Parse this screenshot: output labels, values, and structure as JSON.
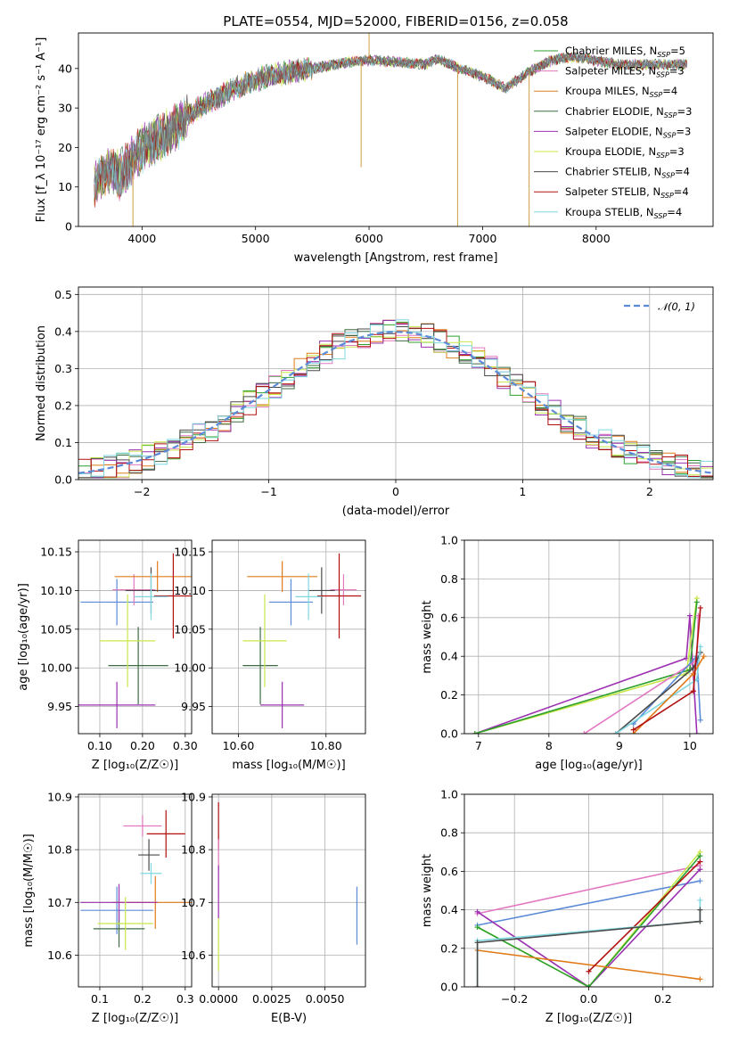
{
  "title": "PLATE=0554, MJD=52000, FIBERID=0156, z=0.058",
  "models": [
    {
      "name": "Chabrier MILES",
      "nssp": "5",
      "color": "#2ca02c"
    },
    {
      "name": "Salpeter MILES",
      "nssp": "3",
      "color": "#e377c2"
    },
    {
      "name": "Kroupa MILES",
      "nssp": "4",
      "color": "#e07b1a"
    },
    {
      "name": "Chabrier ELODIE",
      "nssp": "3",
      "color": "#3d6b45"
    },
    {
      "name": "Salpeter ELODIE",
      "nssp": "3",
      "color": "#9b30b0"
    },
    {
      "name": "Kroupa ELODIE",
      "nssp": "3",
      "color": "#c8e84a"
    },
    {
      "name": "Chabrier STELIB",
      "nssp": "4",
      "color": "#4a4a4a"
    },
    {
      "name": "Salpeter STELIB",
      "nssp": "4",
      "color": "#b21010"
    },
    {
      "name": "Kroupa STELIB",
      "nssp": "4",
      "color": "#7fd7e0"
    }
  ],
  "chart_data": [
    {
      "id": "spectrum",
      "type": "line",
      "xlabel": "wavelength [Angstrom, rest frame]",
      "ylabel": "Flux [f_λ 10⁻¹⁷ erg cm⁻² s⁻¹ A⁻¹]",
      "xlim": [
        3440,
        9030
      ],
      "ylim": [
        0,
        49
      ],
      "xticks": [
        4000,
        5000,
        6000,
        7000,
        8000
      ],
      "yticks": [
        0,
        10,
        20,
        30,
        40
      ],
      "continuum": {
        "x": [
          3580,
          3700,
          3800,
          3900,
          4000,
          4100,
          4200,
          4300,
          4400,
          4500,
          4700,
          4900,
          5100,
          5300,
          5500,
          5700,
          5900,
          6100,
          6300,
          6500,
          6600,
          6800,
          7000,
          7200,
          7400,
          7600,
          7800,
          8000,
          8200,
          8400,
          8600,
          8800
        ],
        "y": [
          11,
          14,
          13,
          16,
          20,
          21.5,
          23,
          25,
          28,
          30,
          33,
          36,
          38,
          39,
          40,
          41,
          42,
          42,
          41.5,
          41,
          42.5,
          40,
          38,
          35,
          39,
          42,
          43,
          42,
          41,
          41,
          41,
          41
        ]
      },
      "spikes": [
        {
          "x": 3920,
          "ymin": 0
        },
        {
          "x": 5930,
          "ymin": 15
        },
        {
          "x": 6000,
          "ymin": 49
        },
        {
          "x": 6780,
          "ymin": 0
        },
        {
          "x": 7410,
          "ymin": 0
        }
      ]
    },
    {
      "id": "residuals",
      "type": "histogram",
      "xlabel": "(data-model)/error",
      "ylabel": "Normed distribution",
      "xlim": [
        -2.5,
        2.5
      ],
      "ylim": [
        0,
        0.52
      ],
      "xticks": [
        -2,
        -1,
        0,
        1,
        2
      ],
      "yticks": [
        0.0,
        0.1,
        0.2,
        0.3,
        0.4,
        0.5
      ],
      "legend": "𝒩(0, 1)",
      "legend_color": "#5b8bd8",
      "bins": {
        "start": -2.5,
        "width": 0.1,
        "count": 50
      }
    },
    {
      "id": "age_vs_Z",
      "type": "scatter",
      "xlabel": "Z [log₁₀(Z/Z☉)]",
      "ylabel": "age  [log₁₀(age/yr)]",
      "xlim": [
        0.05,
        0.315
      ],
      "ylim": [
        9.915,
        10.165
      ],
      "xticks": [
        0.1,
        0.2,
        0.3
      ],
      "yticks": [
        9.95,
        10.0,
        10.05,
        10.1,
        10.15
      ],
      "points": [
        {
          "x": 0.14,
          "y": 10.085,
          "xerr": 0.085,
          "yerr": 0.03,
          "c": "#5b8bd8"
        },
        {
          "x": 0.18,
          "y": 10.101,
          "xerr": 0.05,
          "yerr": 0.02,
          "c": "#e377c2"
        },
        {
          "x": 0.235,
          "y": 10.118,
          "xerr": 0.1,
          "yerr": 0.02,
          "c": "#e07b1a"
        },
        {
          "x": 0.19,
          "y": 10.003,
          "xerr": 0.07,
          "yerr": 0.05,
          "c": "#3d6b45"
        },
        {
          "x": 0.14,
          "y": 9.952,
          "xerr": 0.09,
          "yerr": 0.03,
          "c": "#9b30b0"
        },
        {
          "x": 0.165,
          "y": 10.035,
          "xerr": 0.065,
          "yerr": 0.06,
          "c": "#c8e84a"
        },
        {
          "x": 0.22,
          "y": 10.1,
          "xerr": 0.06,
          "yerr": 0.03,
          "c": "#4a4a4a"
        },
        {
          "x": 0.272,
          "y": 10.093,
          "xerr": 0.045,
          "yerr": 0.055,
          "c": "#b21010"
        },
        {
          "x": 0.22,
          "y": 10.092,
          "xerr": 0.04,
          "yerr": 0.03,
          "c": "#7fd7e0"
        }
      ]
    },
    {
      "id": "age_vs_mass",
      "type": "scatter",
      "xlabel": "mass [log₁₀(M/M☉)]",
      "ylabel": "",
      "xlim": [
        10.54,
        10.89
      ],
      "ylim": [
        9.915,
        10.165
      ],
      "xticks": [
        10.6,
        10.8
      ],
      "yticks": [
        9.95,
        10.0,
        10.05,
        10.1,
        10.15
      ],
      "points": [
        {
          "x": 10.72,
          "y": 10.085,
          "xerr": 0.05,
          "yerr": 0.03,
          "c": "#5b8bd8"
        },
        {
          "x": 10.84,
          "y": 10.101,
          "xerr": 0.03,
          "yerr": 0.02,
          "c": "#e377c2"
        },
        {
          "x": 10.7,
          "y": 10.118,
          "xerr": 0.08,
          "yerr": 0.02,
          "c": "#e07b1a"
        },
        {
          "x": 10.65,
          "y": 10.003,
          "xerr": 0.04,
          "yerr": 0.05,
          "c": "#3d6b45"
        },
        {
          "x": 10.7,
          "y": 9.952,
          "xerr": 0.05,
          "yerr": 0.03,
          "c": "#9b30b0"
        },
        {
          "x": 10.66,
          "y": 10.035,
          "xerr": 0.05,
          "yerr": 0.06,
          "c": "#c8e84a"
        },
        {
          "x": 10.79,
          "y": 10.1,
          "xerr": 0.03,
          "yerr": 0.03,
          "c": "#4a4a4a"
        },
        {
          "x": 10.83,
          "y": 10.093,
          "xerr": 0.05,
          "yerr": 0.055,
          "c": "#b21010"
        },
        {
          "x": 10.76,
          "y": 10.092,
          "xerr": 0.03,
          "yerr": 0.03,
          "c": "#7fd7e0"
        }
      ]
    },
    {
      "id": "weight_vs_age",
      "type": "line",
      "xlabel": "age  [log₁₀(age/yr)]",
      "ylabel": "mass weight",
      "xlim": [
        6.8,
        10.33
      ],
      "ylim": [
        0,
        1.0
      ],
      "xticks": [
        7,
        8,
        9,
        10
      ],
      "yticks": [
        0.0,
        0.2,
        0.4,
        0.6,
        0.8,
        1.0
      ],
      "series": [
        {
          "c": "#9b30b0",
          "x": [
            6.95,
            9.95,
            10.0,
            10.1
          ],
          "y": [
            0.0,
            0.39,
            0.61,
            0.0
          ]
        },
        {
          "c": "#c8e84a",
          "x": [
            6.95,
            9.95,
            10.1
          ],
          "y": [
            0.0,
            0.31,
            0.7
          ]
        },
        {
          "c": "#2ca02c",
          "x": [
            6.95,
            10.0,
            10.1
          ],
          "y": [
            0.0,
            0.33,
            0.68
          ]
        },
        {
          "c": "#e377c2",
          "x": [
            8.5,
            10.1,
            10.12
          ],
          "y": [
            0.0,
            0.38,
            0.61
          ]
        },
        {
          "c": "#5b8bd8",
          "x": [
            9.2,
            10.1,
            10.15
          ],
          "y": [
            0.05,
            0.4,
            0.07
          ]
        },
        {
          "c": "#4a4a4a",
          "x": [
            8.95,
            10.05,
            10.15
          ],
          "y": [
            0.0,
            0.34,
            0.42
          ]
        },
        {
          "c": "#7fd7e0",
          "x": [
            8.95,
            10.1,
            10.15
          ],
          "y": [
            0.0,
            0.28,
            0.45
          ]
        },
        {
          "c": "#e07b1a",
          "x": [
            9.2,
            10.05,
            10.2
          ],
          "y": [
            0.0,
            0.31,
            0.4
          ]
        },
        {
          "c": "#b21010",
          "x": [
            9.2,
            10.05,
            10.15
          ],
          "y": [
            0.02,
            0.22,
            0.65
          ]
        }
      ]
    },
    {
      "id": "mass_vs_Z",
      "type": "scatter",
      "xlabel": "Z [log₁₀(Z/Z☉)]",
      "ylabel": "mass [log₁₀(M/M☉)]",
      "xlim": [
        0.05,
        0.315
      ],
      "ylim": [
        10.54,
        10.905
      ],
      "xticks": [
        0.1,
        0.2,
        0.3
      ],
      "yticks": [
        10.6,
        10.7,
        10.8,
        10.9
      ],
      "points": [
        {
          "x": 0.14,
          "y": 10.685,
          "xerr": 0.085,
          "yerr": 0.045,
          "c": "#5b8bd8"
        },
        {
          "x": 0.2,
          "y": 10.845,
          "xerr": 0.045,
          "yerr": 0.02,
          "c": "#e377c2"
        },
        {
          "x": 0.23,
          "y": 10.7,
          "xerr": 0.1,
          "yerr": 0.05,
          "c": "#e07b1a"
        },
        {
          "x": 0.145,
          "y": 10.65,
          "xerr": 0.06,
          "yerr": 0.035,
          "c": "#3d6b45"
        },
        {
          "x": 0.145,
          "y": 10.7,
          "xerr": 0.09,
          "yerr": 0.035,
          "c": "#9b30b0"
        },
        {
          "x": 0.16,
          "y": 10.66,
          "xerr": 0.065,
          "yerr": 0.05,
          "c": "#c8e84a"
        },
        {
          "x": 0.215,
          "y": 10.79,
          "xerr": 0.025,
          "yerr": 0.03,
          "c": "#4a4a4a"
        },
        {
          "x": 0.255,
          "y": 10.83,
          "xerr": 0.045,
          "yerr": 0.045,
          "c": "#b21010"
        },
        {
          "x": 0.22,
          "y": 10.755,
          "xerr": 0.025,
          "yerr": 0.02,
          "c": "#7fd7e0"
        }
      ]
    },
    {
      "id": "mass_vs_ebv",
      "type": "scatter",
      "xlabel": "E(B-V)",
      "ylabel": "",
      "xlim": [
        -0.0003,
        0.0069
      ],
      "ylim": [
        10.54,
        10.905
      ],
      "xticks": [
        0.0,
        0.0025,
        0.005
      ],
      "xticklabels": [
        "0.0000",
        "0.0025",
        "0.0050"
      ],
      "yticks": [
        10.6,
        10.7,
        10.8,
        10.9
      ],
      "points": [
        {
          "x": 0.0,
          "y": 10.845,
          "xerr": 0,
          "yerr": 0.045,
          "c": "#b21010"
        },
        {
          "x": 0.0,
          "y": 10.79,
          "xerr": 0,
          "yerr": 0.03,
          "c": "#e377c2"
        },
        {
          "x": 0.0,
          "y": 10.72,
          "xerr": 0,
          "yerr": 0.05,
          "c": "#9b30b0"
        },
        {
          "x": 0.0,
          "y": 10.62,
          "xerr": 0,
          "yerr": 0.05,
          "c": "#c8e84a"
        },
        {
          "x": 0.0065,
          "y": 10.675,
          "xerr": 0,
          "yerr": 0.055,
          "c": "#5b8bd8"
        }
      ]
    },
    {
      "id": "weight_vs_Z",
      "type": "line",
      "xlabel": "Z [log₁₀(Z/Z☉)]",
      "ylabel": "mass weight",
      "xlim": [
        -0.335,
        0.335
      ],
      "ylim": [
        0,
        1.0
      ],
      "xticks": [
        -0.2,
        0.0,
        0.2
      ],
      "yticks": [
        0.0,
        0.2,
        0.4,
        0.6,
        0.8,
        1.0
      ],
      "series": [
        {
          "c": "#e377c2",
          "x": [
            -0.3,
            0.3
          ],
          "y": [
            0.38,
            0.63
          ]
        },
        {
          "c": "#5b8bd8",
          "x": [
            -0.3,
            0.3
          ],
          "y": [
            0.32,
            0.55
          ]
        },
        {
          "c": "#9b30b0",
          "x": [
            -0.3,
            0.0,
            0.3
          ],
          "y": [
            0.39,
            0.0,
            0.61
          ]
        },
        {
          "c": "#c8e84a",
          "x": [
            -0.3,
            0.0,
            0.3
          ],
          "y": [
            0.31,
            0.0,
            0.7
          ]
        },
        {
          "c": "#2ca02c",
          "x": [
            -0.3,
            0.0,
            0.3
          ],
          "y": [
            0.31,
            0.0,
            0.68
          ]
        },
        {
          "c": "#e07b1a",
          "x": [
            -0.3,
            0.3
          ],
          "y": [
            0.19,
            0.04
          ]
        },
        {
          "c": "#b21010",
          "x": [
            0.0,
            0.3
          ],
          "y": [
            0.08,
            0.65
          ]
        },
        {
          "c": "#7fd7e0",
          "x": [
            -0.3,
            -0.3,
            0.3,
            0.3
          ],
          "y": [
            0.0,
            0.24,
            0.34,
            0.45
          ]
        },
        {
          "c": "#4a4a4a",
          "x": [
            -0.3,
            -0.3,
            0.3,
            0.3
          ],
          "y": [
            0.0,
            0.23,
            0.34,
            0.4
          ]
        }
      ]
    }
  ]
}
